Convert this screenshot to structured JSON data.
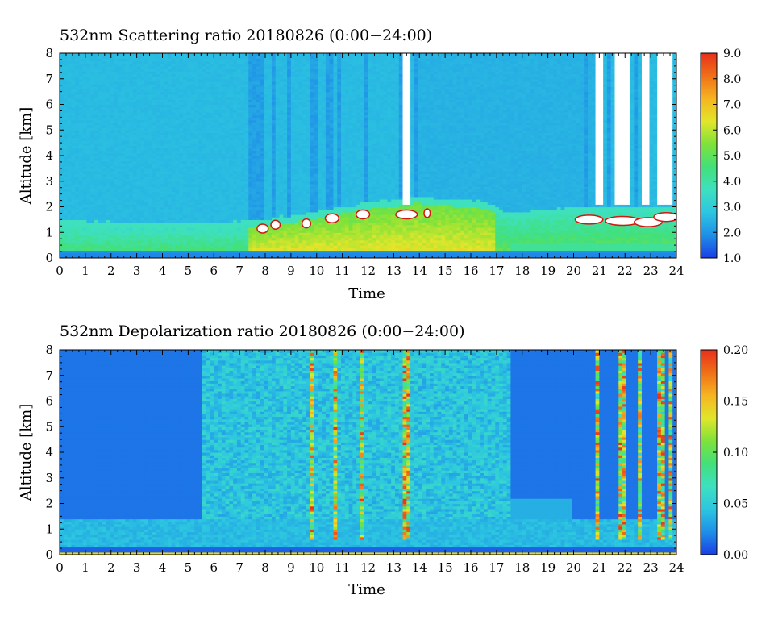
{
  "chart_data": [
    {
      "type": "heatmap",
      "title": "532nm Scattering ratio  20180826 (0:00−24:00)",
      "xlabel": "Time",
      "ylabel": "Altitude [km]",
      "xlim": [
        0,
        24
      ],
      "ylim": [
        0,
        8
      ],
      "x_ticks": [
        "0",
        "1",
        "2",
        "3",
        "4",
        "5",
        "6",
        "7",
        "8",
        "9",
        "10",
        "11",
        "12",
        "13",
        "14",
        "15",
        "16",
        "17",
        "18",
        "19",
        "20",
        "21",
        "22",
        "23",
        "24"
      ],
      "y_ticks": [
        "0",
        "1",
        "2",
        "3",
        "4",
        "5",
        "6",
        "7",
        "8"
      ],
      "colorbar": {
        "range": [
          1.0,
          9.0
        ],
        "ticks": [
          "1.0",
          "2.0",
          "3.0",
          "4.0",
          "5.0",
          "6.0",
          "7.0",
          "8.0",
          "9.0"
        ],
        "colors": [
          "#1a3ee6",
          "#1f8fe8",
          "#2cc6e0",
          "#3ee0c0",
          "#42e07a",
          "#7ee23a",
          "#e2e62a",
          "#f6b420",
          "#f07018",
          "#e8301a"
        ]
      },
      "features": {
        "background_value": 2.6,
        "surface_stripe_value": 1.8,
        "boundary_layer": {
          "times": [
            0,
            3,
            6,
            7.5,
            9,
            11,
            13,
            14,
            16.5,
            17.5,
            19,
            20.5,
            22,
            24
          ],
          "top_km": [
            1.5,
            1.4,
            1.4,
            1.5,
            1.65,
            2.0,
            2.3,
            2.4,
            2.2,
            1.8,
            1.9,
            2.0,
            2.0,
            2.0
          ]
        },
        "saturated_columns": [
          {
            "t0": 13.4,
            "t1": 13.6
          },
          {
            "t0": 20.9,
            "t1": 21.2
          },
          {
            "t0": 21.6,
            "t1": 22.2
          },
          {
            "t0": 22.6,
            "t1": 23.0
          },
          {
            "t0": 23.3,
            "t1": 23.85
          }
        ],
        "dark_columns": [
          7.5,
          7.8,
          8.3,
          8.9,
          9.8,
          10.0,
          10.5,
          10.9,
          11.9,
          13.3,
          13.9,
          20.5,
          21.4,
          22.4
        ]
      }
    },
    {
      "type": "heatmap",
      "title": "532nm Depolarization ratio  20180826 (0:00−24:00)",
      "xlabel": "Time",
      "ylabel": "Altitude [km]",
      "xlim": [
        0,
        24
      ],
      "ylim": [
        0,
        8
      ],
      "x_ticks": [
        "0",
        "1",
        "2",
        "3",
        "4",
        "5",
        "6",
        "7",
        "8",
        "9",
        "10",
        "11",
        "12",
        "13",
        "14",
        "15",
        "16",
        "17",
        "18",
        "19",
        "20",
        "21",
        "22",
        "23",
        "24"
      ],
      "y_ticks": [
        "0",
        "1",
        "2",
        "3",
        "4",
        "5",
        "6",
        "7",
        "8"
      ],
      "colorbar": {
        "range": [
          0.0,
          0.2
        ],
        "ticks": [
          "0.00",
          "0.05",
          "0.10",
          "0.15",
          "0.20"
        ],
        "colors": [
          "#1a3ee6",
          "#1f8fe8",
          "#2cc6e0",
          "#3ee0c0",
          "#42e07a",
          "#7ee23a",
          "#e2e62a",
          "#f6b420",
          "#f07018",
          "#e8301a"
        ]
      },
      "features": {
        "background_value": 0.015,
        "noisy_region": {
          "t0": 5.5,
          "t1": 17.5
        },
        "boundary_layer_top_km": 1.4,
        "spiky_columns": [
          9.8,
          10.7,
          11.8,
          13.5,
          20.9,
          21.9,
          22.6,
          23.4,
          23.8
        ]
      }
    }
  ]
}
